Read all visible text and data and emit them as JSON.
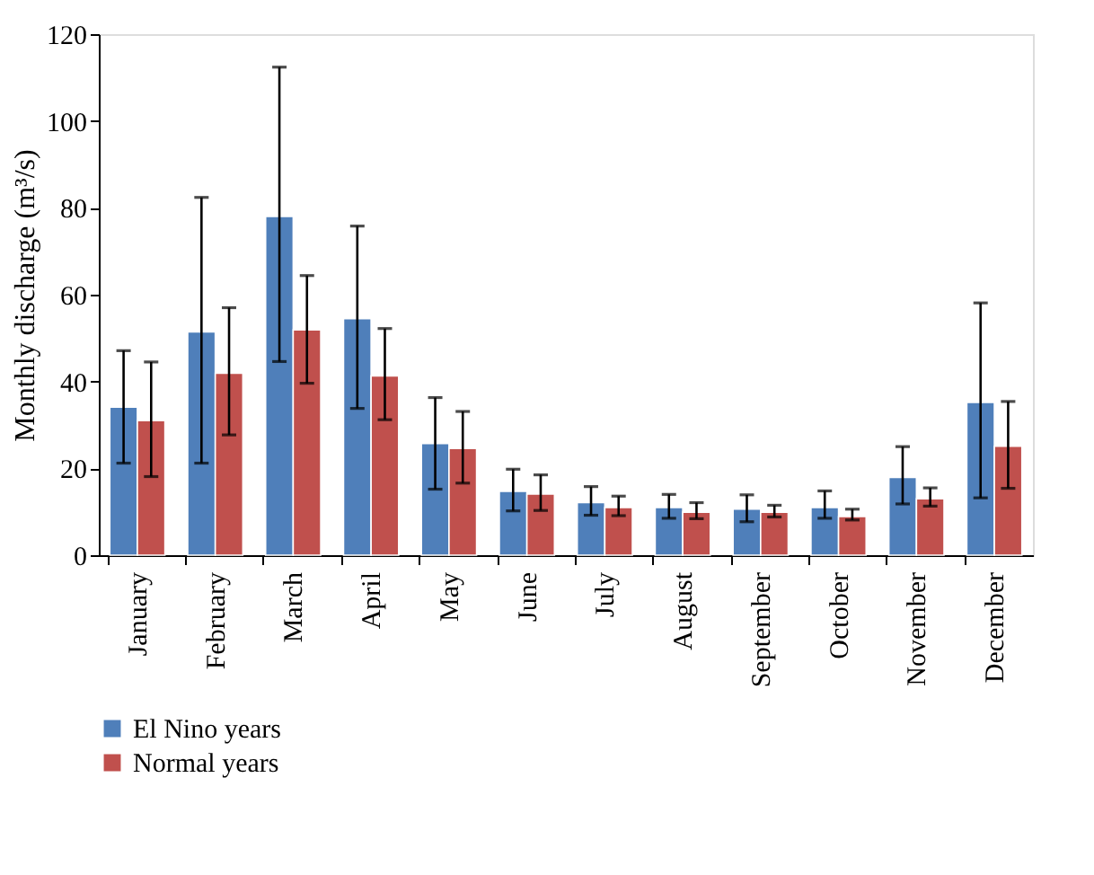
{
  "chart_data": {
    "type": "bar",
    "ylabel": "Monthly discharge (m³/s)",
    "categories": [
      "January",
      "February",
      "March",
      "April",
      "May",
      "June",
      "July",
      "August",
      "September",
      "October",
      "November",
      "December"
    ],
    "series": [
      {
        "name": "El Nino years",
        "color": "#4f7fba",
        "values": [
          34.1,
          51.4,
          78.0,
          54.5,
          25.7,
          14.7,
          12.1,
          11.0,
          10.6,
          11.0,
          17.9,
          35.2
        ],
        "errors": [
          [
            21.2,
            47.1
          ],
          [
            21.2,
            82.4
          ],
          [
            44.6,
            112.4
          ],
          [
            33.8,
            75.8
          ],
          [
            15.2,
            36.3
          ],
          [
            10.2,
            19.8
          ],
          [
            9.2,
            15.8
          ],
          [
            8.5,
            14.0
          ],
          [
            7.7,
            13.9
          ],
          [
            8.5,
            14.8
          ],
          [
            11.8,
            25.0
          ],
          [
            13.2,
            58.1
          ]
        ]
      },
      {
        "name": "Normal years",
        "color": "#c0504d",
        "values": [
          31.0,
          41.9,
          51.9,
          41.3,
          24.6,
          14.1,
          11.0,
          9.9,
          9.9,
          8.9,
          13.0,
          25.1
        ],
        "errors": [
          [
            18.1,
            44.5
          ],
          [
            27.7,
            57.0
          ],
          [
            39.6,
            64.4
          ],
          [
            31.2,
            52.2
          ],
          [
            16.6,
            33.1
          ],
          [
            10.3,
            18.5
          ],
          [
            9.1,
            13.6
          ],
          [
            8.4,
            12.1
          ],
          [
            8.8,
            11.5
          ],
          [
            8.1,
            10.6
          ],
          [
            11.3,
            15.5
          ],
          [
            15.4,
            35.4
          ]
        ]
      }
    ],
    "ylim": [
      0,
      120
    ],
    "yticks": [
      0,
      20,
      40,
      60,
      80,
      100,
      120
    ],
    "grid": false,
    "legend": "bottom left"
  }
}
